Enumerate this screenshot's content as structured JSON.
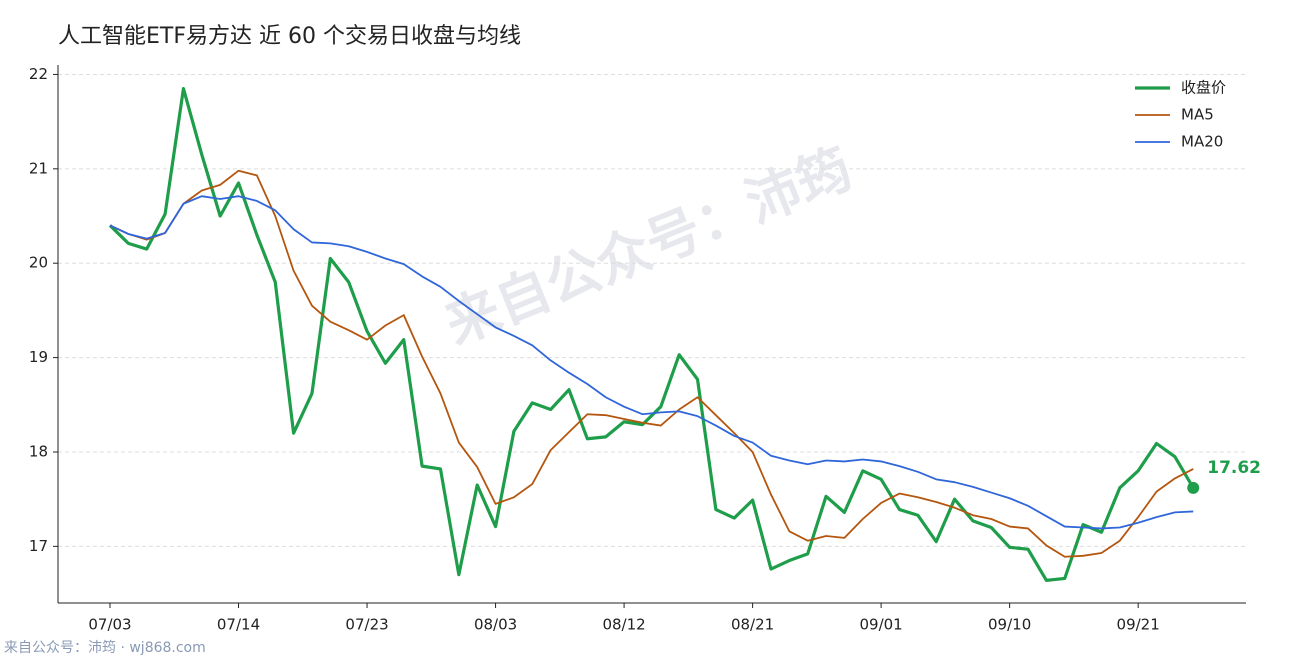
{
  "chart_data": {
    "type": "line",
    "title": "人工智能ETF易方达 近 60 个交易日收盘与均线",
    "watermark": "来自公众号：沛筠",
    "footer": "来自公众号：沛筠 · wj868.com",
    "categories": [
      "07/03",
      null,
      null,
      null,
      null,
      null,
      null,
      "07/14",
      null,
      null,
      null,
      null,
      null,
      null,
      "07/23",
      null,
      null,
      null,
      null,
      null,
      null,
      "08/03",
      null,
      null,
      null,
      null,
      null,
      null,
      "08/12",
      null,
      null,
      null,
      null,
      null,
      null,
      "08/21",
      null,
      null,
      null,
      null,
      null,
      null,
      "09/01",
      null,
      null,
      null,
      null,
      null,
      null,
      "09/10",
      null,
      null,
      null,
      null,
      null,
      null,
      "09/21",
      null,
      null,
      null
    ],
    "series": [
      {
        "name": "收盘价",
        "color": "#1e9e4a",
        "width": 3.2,
        "values": [
          20.4,
          20.21,
          20.15,
          20.52,
          21.85,
          21.15,
          20.5,
          20.85,
          20.3,
          19.8,
          18.2,
          18.62,
          20.05,
          19.8,
          19.28,
          18.94,
          19.19,
          17.85,
          17.82,
          16.7,
          17.65,
          17.21,
          18.22,
          18.52,
          18.45,
          18.66,
          18.14,
          18.16,
          18.32,
          18.29,
          18.48,
          19.03,
          18.77,
          17.39,
          17.3,
          17.49,
          16.76,
          16.85,
          16.92,
          17.53,
          17.36,
          17.8,
          17.71,
          17.39,
          17.33,
          17.05,
          17.5,
          17.27,
          17.2,
          16.99,
          16.97,
          16.64,
          16.66,
          17.23,
          17.15,
          17.62,
          17.8,
          18.09,
          17.95,
          17.62
        ]
      },
      {
        "name": "MA5",
        "color": "#b5560f",
        "width": 1.8,
        "values": [
          20.4,
          20.31,
          20.25,
          20.32,
          20.63,
          20.77,
          20.83,
          20.98,
          20.93,
          20.5,
          19.92,
          19.55,
          19.38,
          19.29,
          19.19,
          19.34,
          19.45,
          19.01,
          18.62,
          18.1,
          17.84,
          17.45,
          17.52,
          17.66,
          18.02,
          18.21,
          18.4,
          18.39,
          18.35,
          18.31,
          18.28,
          18.45,
          18.58,
          18.39,
          18.2,
          18.0,
          17.55,
          17.16,
          17.06,
          17.11,
          17.09,
          17.29,
          17.46,
          17.56,
          17.52,
          17.47,
          17.41,
          17.33,
          17.29,
          17.21,
          17.19,
          17.01,
          16.89,
          16.9,
          16.93,
          17.06,
          17.31,
          17.58,
          17.72,
          17.82
        ]
      },
      {
        "name": "MA20",
        "color": "#2f66d9",
        "width": 1.8,
        "values": [
          20.4,
          20.31,
          20.26,
          20.32,
          20.63,
          20.71,
          20.68,
          20.71,
          20.66,
          20.56,
          20.36,
          20.22,
          20.21,
          20.18,
          20.12,
          20.05,
          19.99,
          19.86,
          19.75,
          19.6,
          19.46,
          19.32,
          19.23,
          19.13,
          18.97,
          18.84,
          18.72,
          18.58,
          18.48,
          18.4,
          18.42,
          18.43,
          18.38,
          18.28,
          18.17,
          18.1,
          17.96,
          17.91,
          17.87,
          17.91,
          17.9,
          17.92,
          17.9,
          17.85,
          17.79,
          17.71,
          17.68,
          17.63,
          17.57,
          17.51,
          17.43,
          17.32,
          17.21,
          17.2,
          17.19,
          17.2,
          17.25,
          17.31,
          17.36,
          17.37
        ]
      }
    ],
    "ylim": [
      16.4,
      22.1
    ],
    "yticks": [
      17,
      18,
      19,
      20,
      21,
      22
    ],
    "grid": true,
    "legend": "upper-right"
  }
}
